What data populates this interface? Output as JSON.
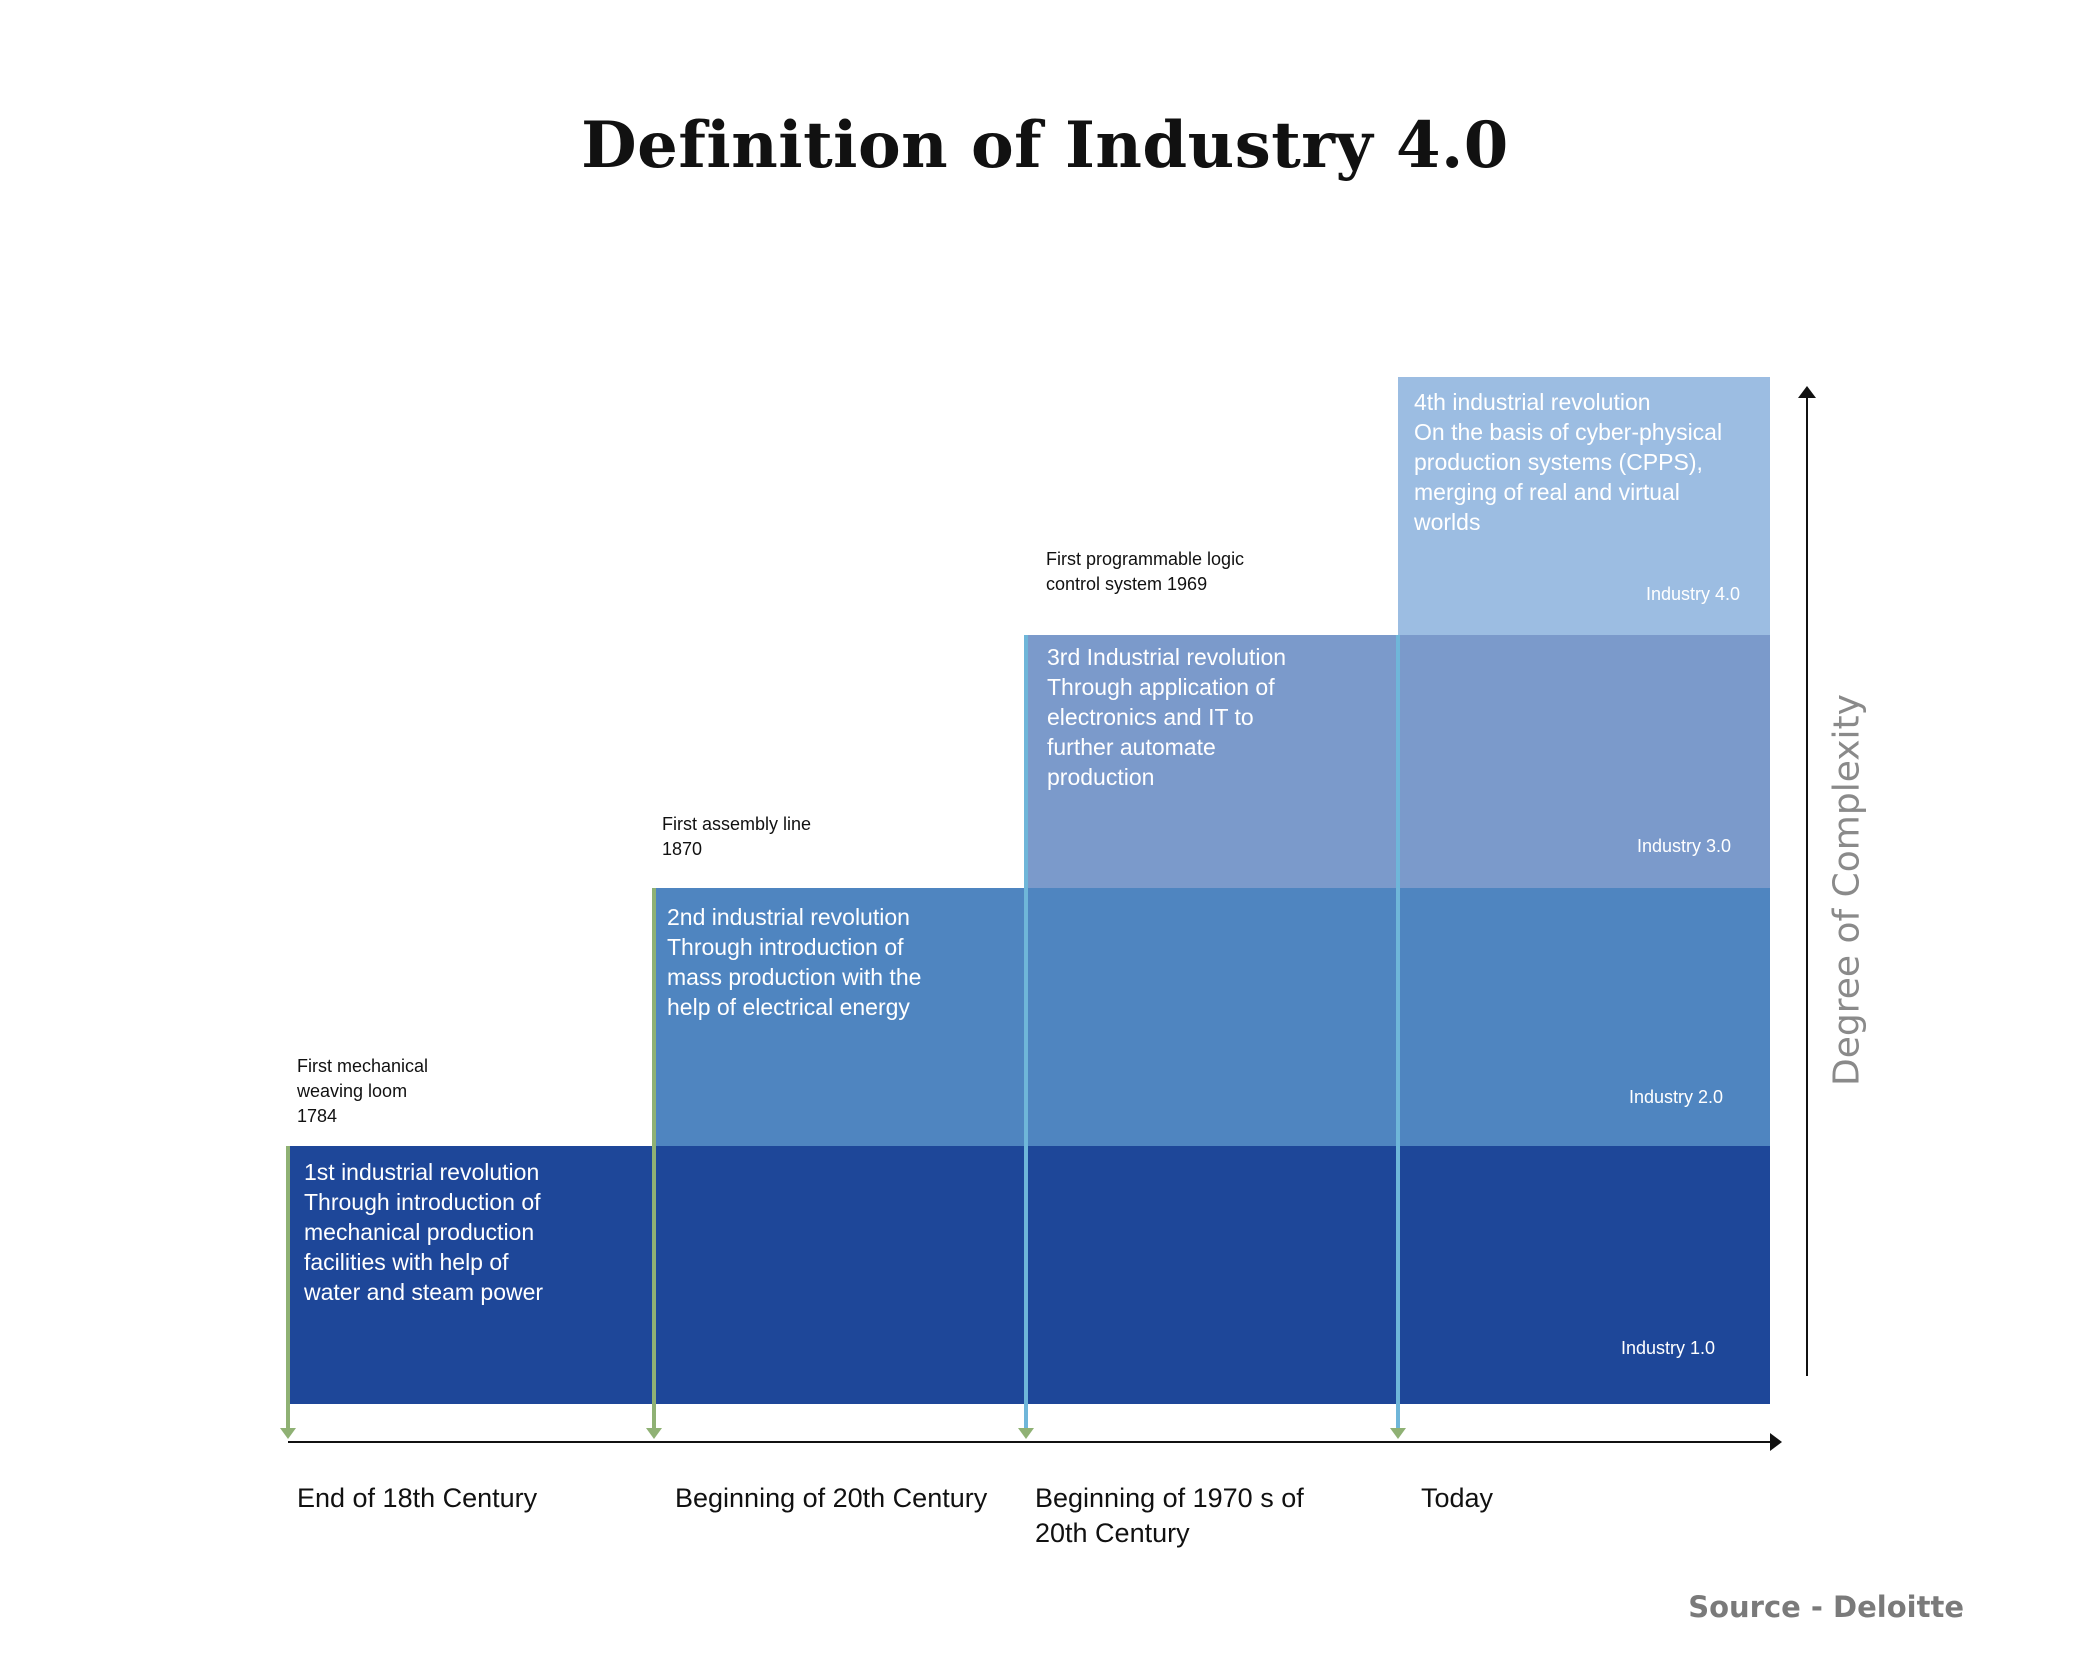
{
  "title": "Definition of Industry 4.0",
  "stages": [
    {
      "description": "1st industrial revolution\nThrough introduction of\nmechanical production\nfacilities with help of\nwater and steam power",
      "label": "Industry 1.0",
      "milestone": "First mechanical\nweaving loom\n1784",
      "era": "End of 18th Century",
      "color": "#1e4799"
    },
    {
      "description": "2nd industrial revolution\nThrough introduction of\nmass production with the\nhelp of electrical energy",
      "label": "Industry 2.0",
      "milestone": "First assembly line\n1870",
      "era": "Beginning of 20th Century",
      "color": "#4f85c0"
    },
    {
      "description": "3rd Industrial revolution\nThrough application of\nelectronics and IT to\nfurther automate\nproduction",
      "label": "Industry 3.0",
      "milestone": "First programmable logic\ncontrol system 1969",
      "era": "Beginning of 1970 s of\n20th Century",
      "color": "#7b9acb"
    },
    {
      "description": "4th industrial revolution\n On the basis of cyber-physical\nproduction systems (CPPS),\nmerging of real and virtual\nworlds",
      "label": "Industry 4.0",
      "era": "Today",
      "color": "#9cbde2"
    }
  ],
  "y_axis_label": "Degree of Complexity",
  "source": "Source - Deloitte"
}
